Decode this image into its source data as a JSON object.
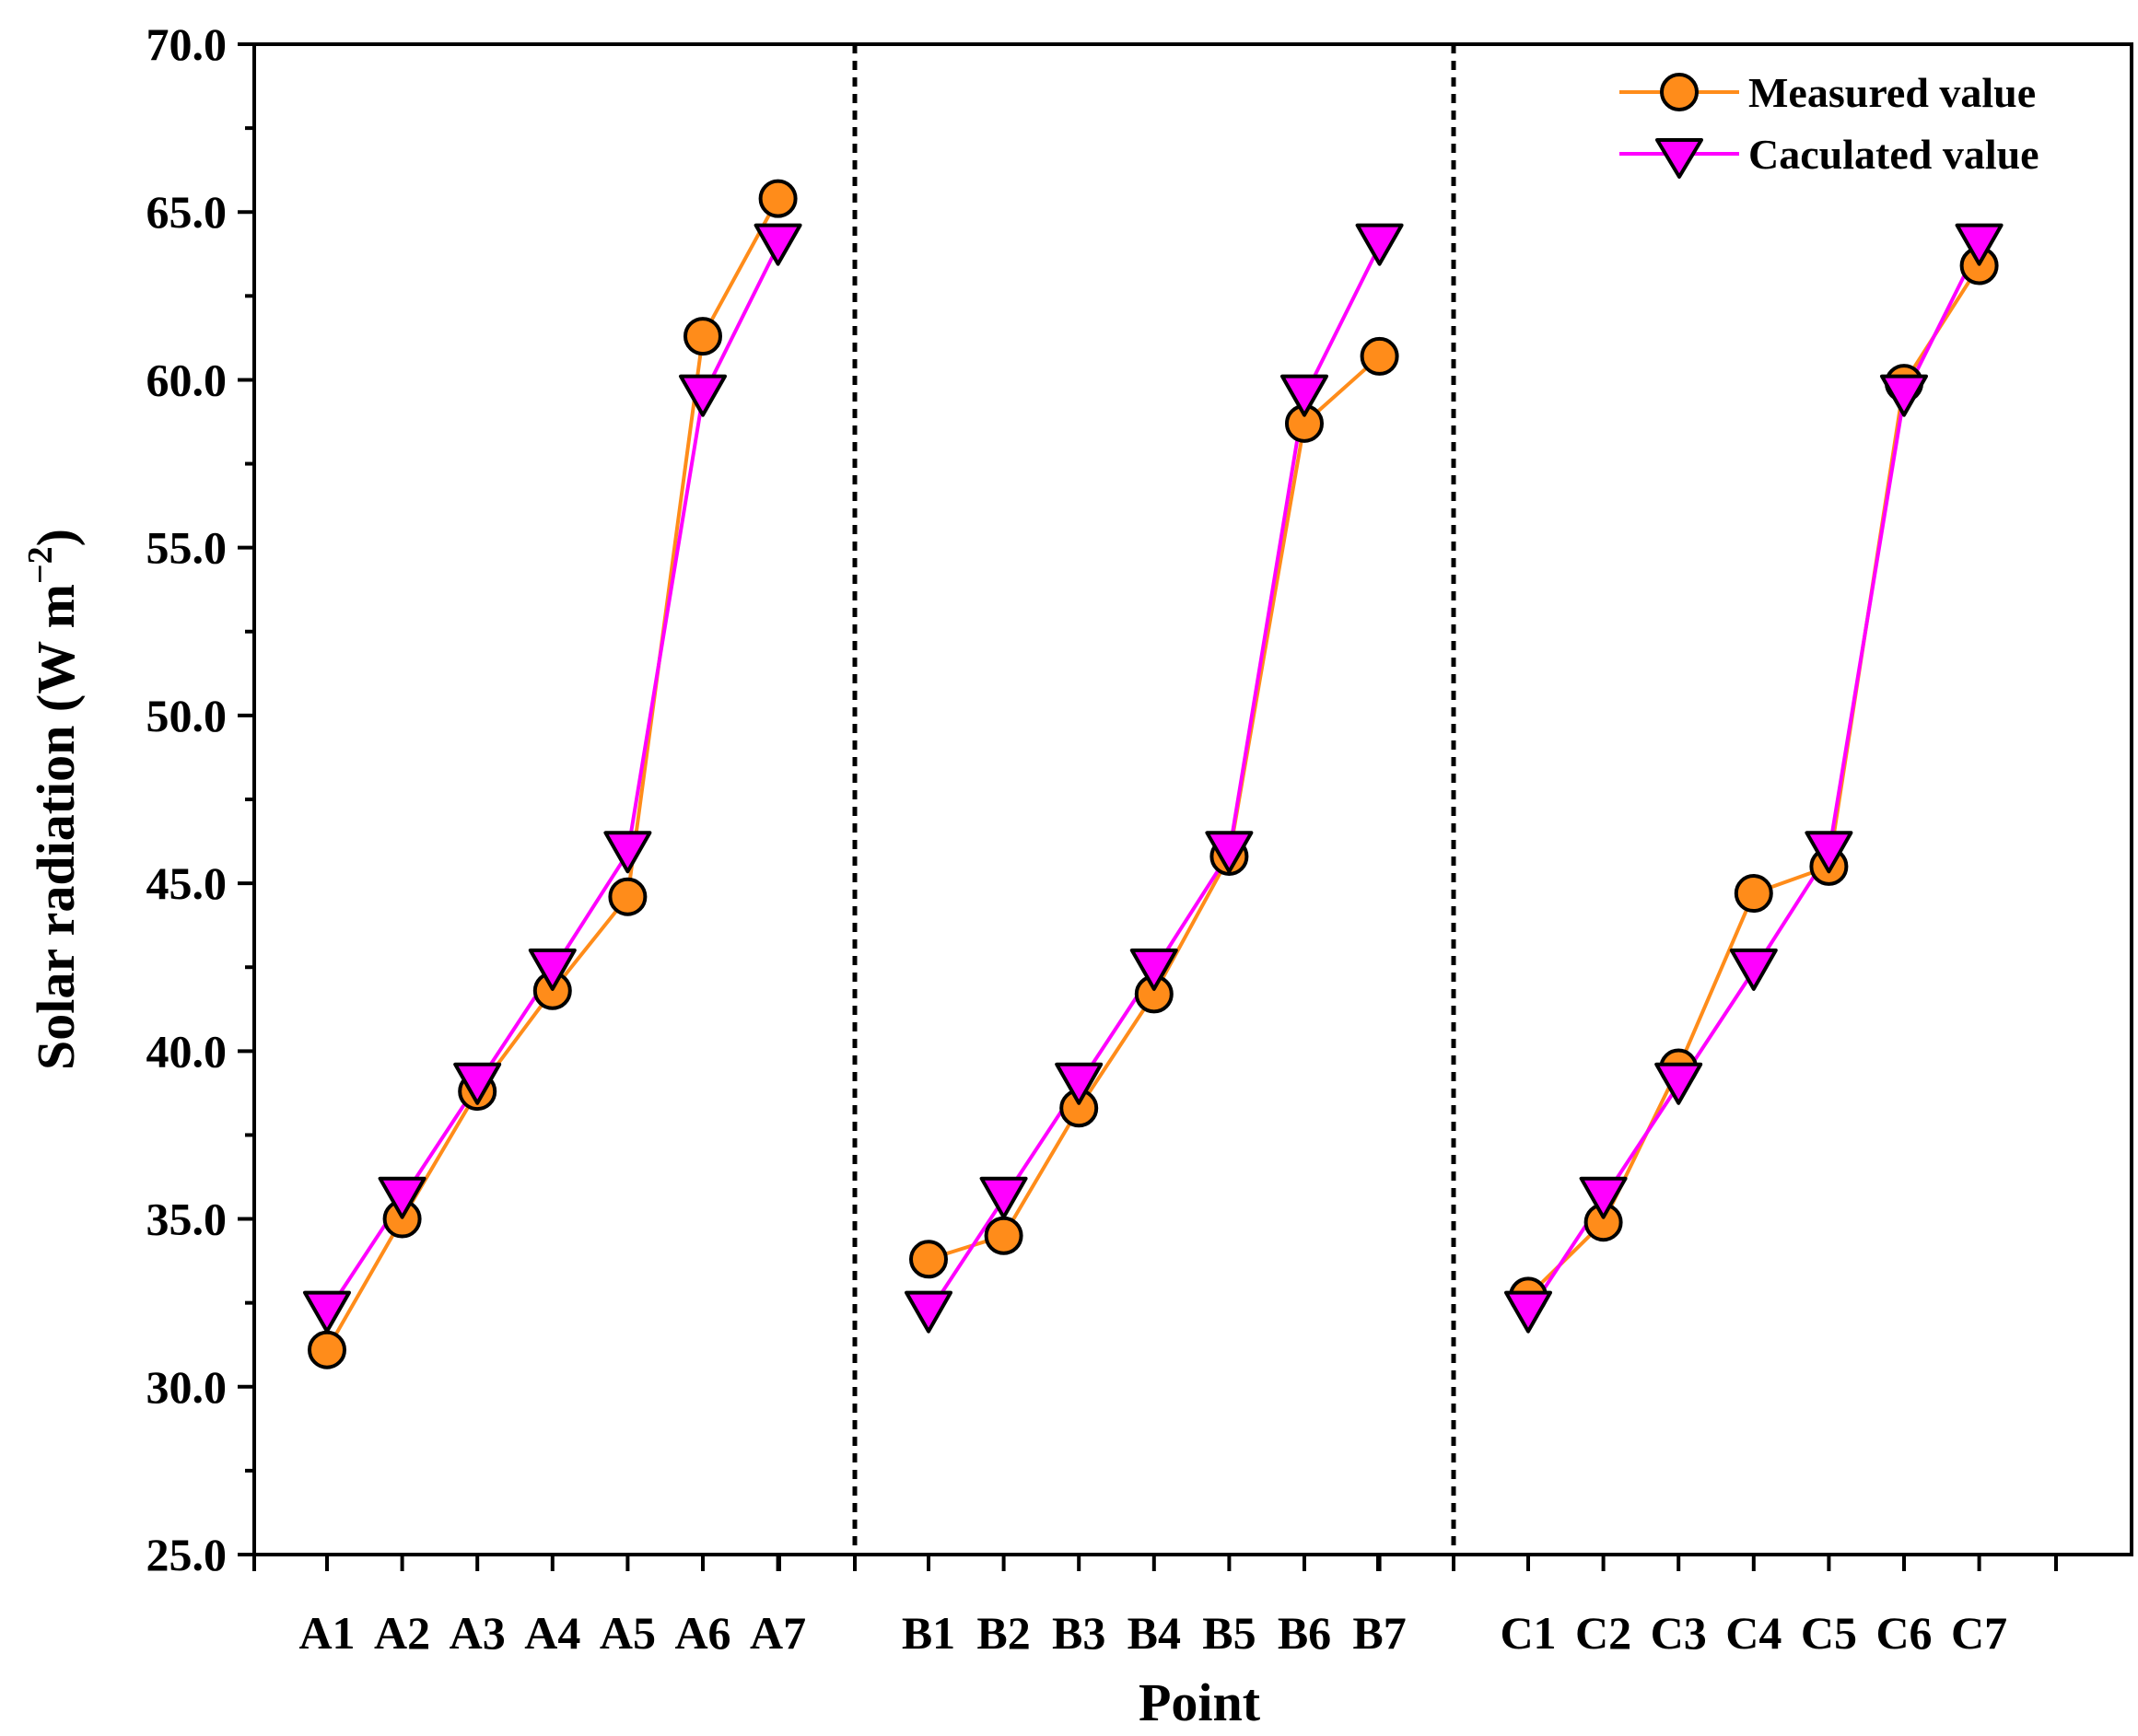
{
  "chart_data": {
    "type": "line",
    "title": "",
    "xlabel": "Point",
    "ylabel": "Solar radiation (W m",
    "ylabel_superscript": "−2",
    "ylabel_close": ")",
    "ylim": [
      25.0,
      70.0
    ],
    "yticks": [
      "25.0",
      "30.0",
      "35.0",
      "40.0",
      "45.0",
      "50.0",
      "55.0",
      "60.0",
      "65.0",
      "70.0"
    ],
    "groups": [
      {
        "name": "A",
        "categories": [
          "A1",
          "A2",
          "A3",
          "A4",
          "A5",
          "A6",
          "A7"
        ]
      },
      {
        "name": "B",
        "categories": [
          "B1",
          "B2",
          "B3",
          "B4",
          "B5",
          "B6",
          "B7"
        ]
      },
      {
        "name": "C",
        "categories": [
          "C1",
          "C2",
          "C3",
          "C4",
          "C5",
          "C6",
          "C7"
        ]
      }
    ],
    "series": [
      {
        "name": "Measured value",
        "marker": "circle",
        "color": "#FF8C1A",
        "values": [
          [
            31.1,
            35.0,
            38.8,
            41.8,
            44.6,
            61.3,
            65.4
          ],
          [
            33.8,
            34.5,
            38.3,
            41.7,
            45.8,
            58.7,
            60.7
          ],
          [
            32.7,
            34.9,
            39.5,
            44.7,
            45.5,
            59.9,
            63.4
          ]
        ]
      },
      {
        "name": "Caculated value",
        "marker": "triangle-down",
        "color": "#FF00FF",
        "values": [
          [
            32.2,
            35.6,
            39.0,
            42.4,
            45.9,
            59.5,
            64.0
          ],
          [
            32.2,
            35.6,
            39.0,
            42.4,
            45.9,
            59.5,
            64.0
          ],
          [
            32.2,
            35.6,
            39.0,
            42.4,
            45.9,
            59.5,
            64.0
          ]
        ]
      }
    ],
    "separators": "dashed vertical lines between groups",
    "legend_position": "top-right",
    "grid": false
  }
}
